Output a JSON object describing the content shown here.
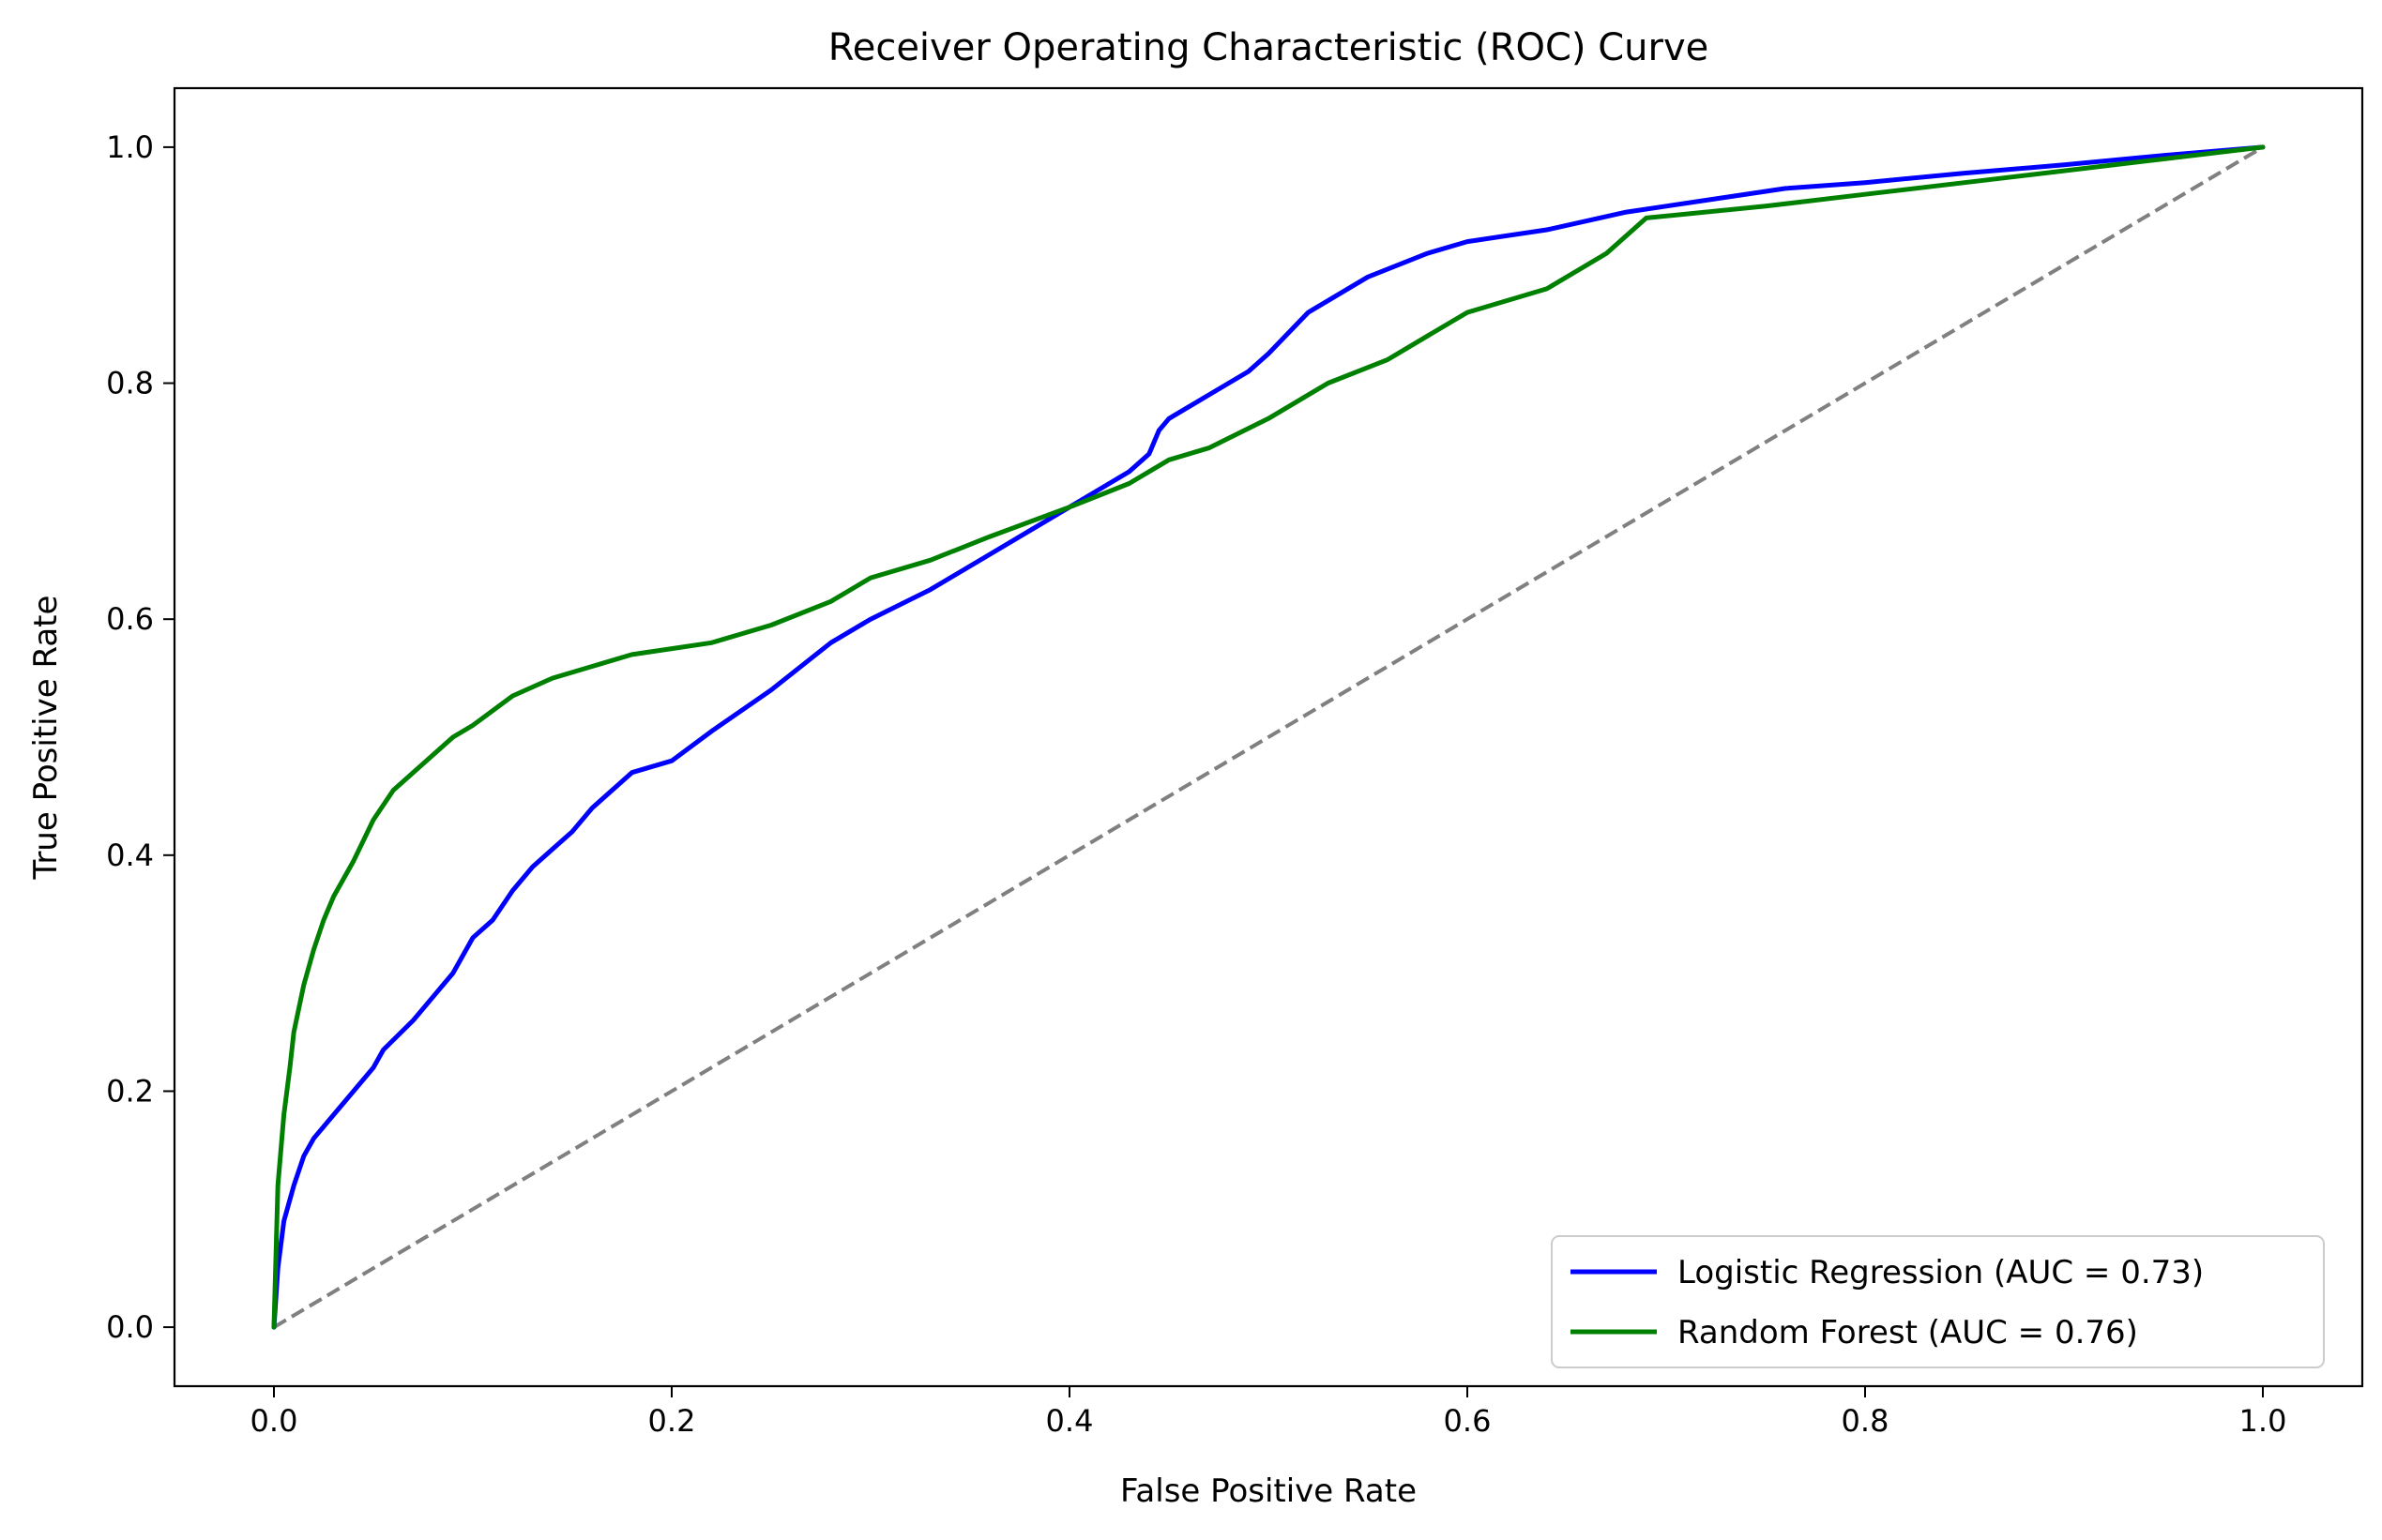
{
  "chart_data": {
    "type": "line",
    "title": "Receiver Operating Characteristic (ROC) Curve",
    "xlabel": "False Positive Rate",
    "ylabel": "True Positive Rate",
    "xlim": [
      -0.05,
      1.05
    ],
    "ylim": [
      -0.05,
      1.05
    ],
    "xticks": [
      "0.0",
      "0.2",
      "0.4",
      "0.6",
      "0.8",
      "1.0"
    ],
    "yticks": [
      "0.0",
      "0.2",
      "0.4",
      "0.6",
      "0.8",
      "1.0"
    ],
    "grid": false,
    "legend_position": "lower-right",
    "series": [
      {
        "name": "Logistic Regression (AUC = 0.73)",
        "color": "#0000ff",
        "x": [
          0,
          0.002,
          0.005,
          0.01,
          0.015,
          0.02,
          0.03,
          0.04,
          0.05,
          0.055,
          0.07,
          0.08,
          0.09,
          0.1,
          0.11,
          0.12,
          0.13,
          0.14,
          0.15,
          0.16,
          0.18,
          0.2,
          0.22,
          0.25,
          0.28,
          0.3,
          0.33,
          0.36,
          0.38,
          0.4,
          0.42,
          0.43,
          0.44,
          0.445,
          0.45,
          0.47,
          0.49,
          0.5,
          0.52,
          0.55,
          0.58,
          0.6,
          0.64,
          0.68,
          0.72,
          0.76,
          0.8,
          0.85,
          0.9,
          0.95,
          1.0
        ],
        "y": [
          0,
          0.05,
          0.09,
          0.12,
          0.145,
          0.16,
          0.18,
          0.2,
          0.22,
          0.235,
          0.26,
          0.28,
          0.3,
          0.33,
          0.345,
          0.37,
          0.39,
          0.405,
          0.42,
          0.44,
          0.47,
          0.48,
          0.505,
          0.54,
          0.58,
          0.6,
          0.625,
          0.655,
          0.675,
          0.695,
          0.715,
          0.725,
          0.74,
          0.76,
          0.77,
          0.79,
          0.81,
          0.825,
          0.86,
          0.89,
          0.91,
          0.92,
          0.93,
          0.945,
          0.955,
          0.965,
          0.97,
          0.978,
          0.985,
          0.993,
          1.0
        ]
      },
      {
        "name": "Random Forest (AUC = 0.76)",
        "color": "#008000",
        "x": [
          0,
          0.002,
          0.005,
          0.008,
          0.01,
          0.015,
          0.02,
          0.025,
          0.03,
          0.04,
          0.05,
          0.06,
          0.07,
          0.08,
          0.09,
          0.1,
          0.12,
          0.14,
          0.16,
          0.18,
          0.2,
          0.22,
          0.25,
          0.28,
          0.3,
          0.33,
          0.36,
          0.4,
          0.43,
          0.45,
          0.47,
          0.5,
          0.53,
          0.56,
          0.58,
          0.6,
          0.64,
          0.67,
          0.69,
          0.75,
          0.8,
          0.85,
          0.9,
          0.95,
          1.0
        ],
        "y": [
          0,
          0.12,
          0.18,
          0.22,
          0.25,
          0.29,
          0.32,
          0.345,
          0.365,
          0.395,
          0.43,
          0.455,
          0.47,
          0.485,
          0.5,
          0.51,
          0.535,
          0.55,
          0.56,
          0.57,
          0.575,
          0.58,
          0.595,
          0.615,
          0.635,
          0.65,
          0.67,
          0.695,
          0.715,
          0.735,
          0.745,
          0.77,
          0.8,
          0.82,
          0.84,
          0.86,
          0.88,
          0.91,
          0.94,
          0.95,
          0.96,
          0.97,
          0.98,
          0.99,
          1.0
        ]
      },
      {
        "name": "",
        "color": "#808080",
        "dashed": true,
        "x": [
          0,
          1
        ],
        "y": [
          0,
          1
        ]
      }
    ]
  }
}
